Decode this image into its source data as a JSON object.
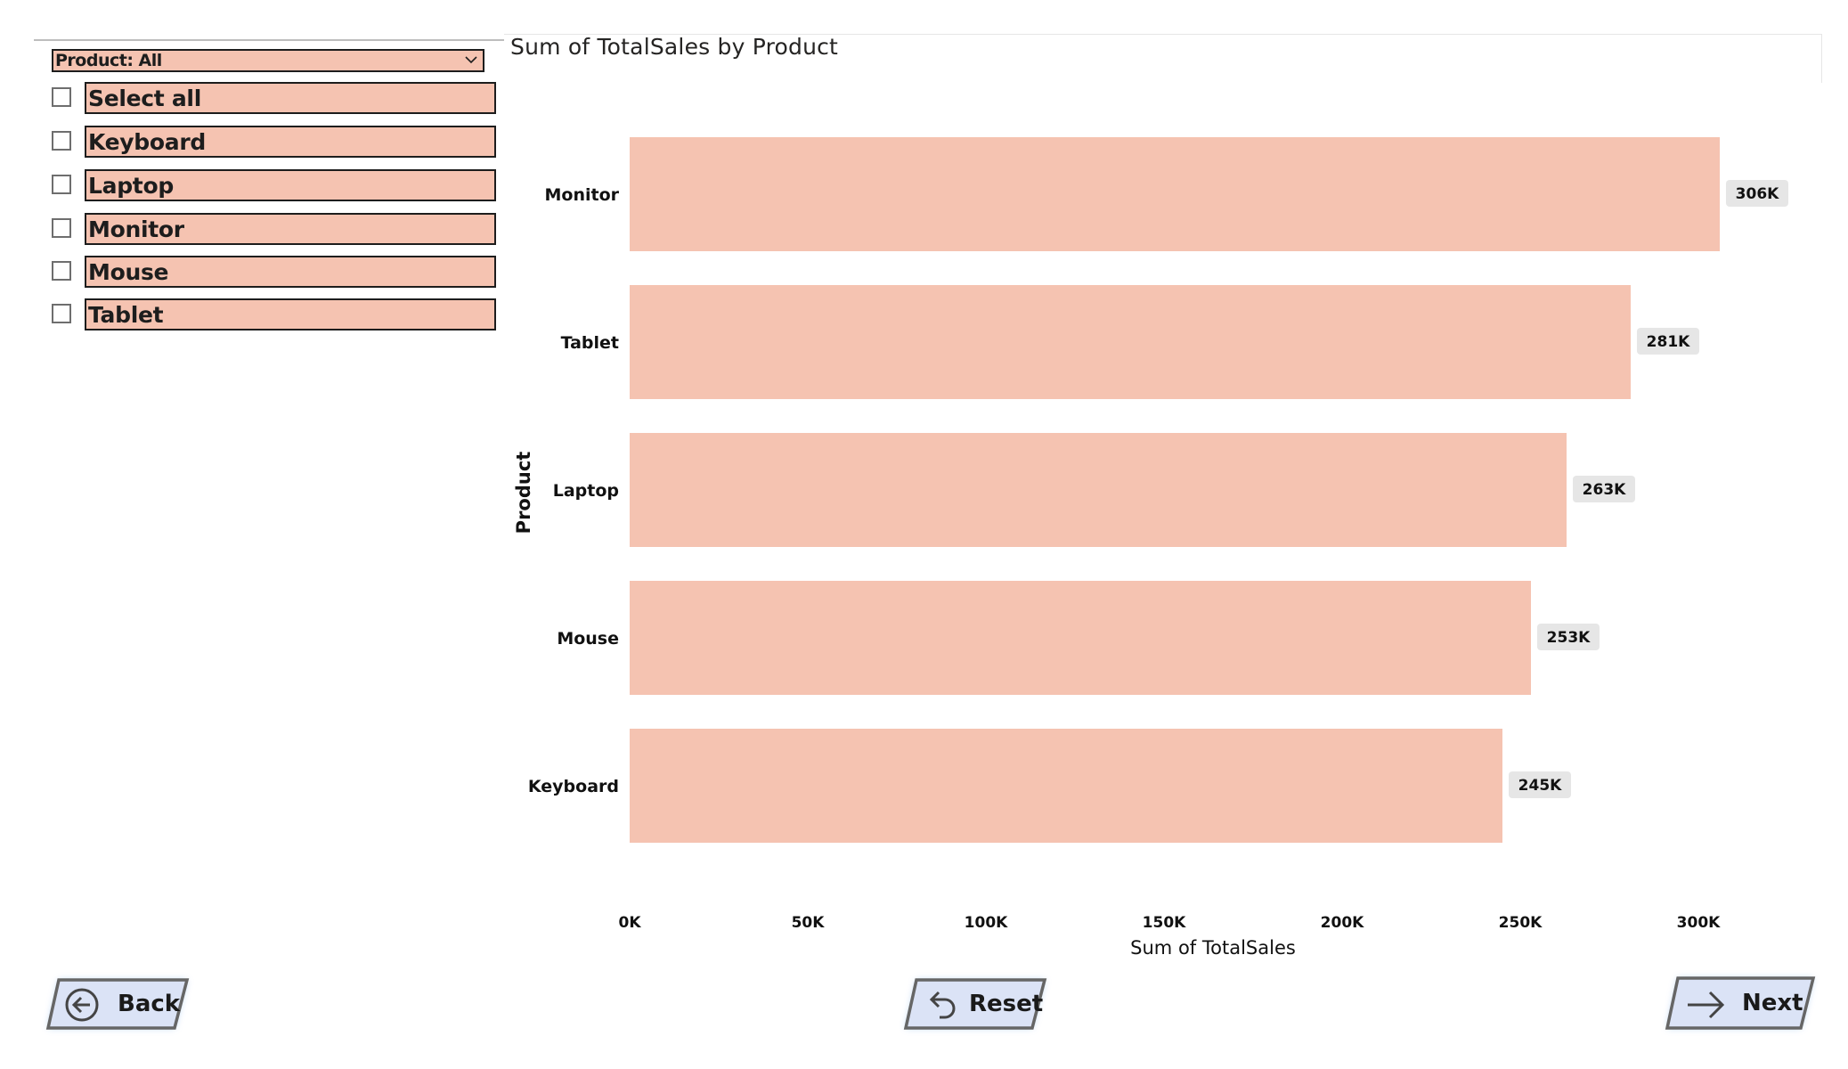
{
  "slicer": {
    "dropdown_label": "Product: All",
    "items": [
      {
        "label": "Select all"
      },
      {
        "label": "Keyboard"
      },
      {
        "label": "Laptop"
      },
      {
        "label": "Monitor"
      },
      {
        "label": "Mouse"
      },
      {
        "label": "Tablet"
      }
    ]
  },
  "chart_data": {
    "type": "bar",
    "orientation": "horizontal",
    "title": "Sum of TotalSales by Product",
    "xlabel": "Sum of TotalSales",
    "ylabel": "Product",
    "categories": [
      "Monitor",
      "Tablet",
      "Laptop",
      "Mouse",
      "Keyboard"
    ],
    "values": [
      306000,
      281000,
      263000,
      253000,
      245000
    ],
    "data_labels": [
      "306K",
      "281K",
      "263K",
      "253K",
      "245K"
    ],
    "xticks": [
      "0K",
      "50K",
      "100K",
      "150K",
      "200K",
      "250K",
      "300K"
    ],
    "xlim": [
      0,
      300000
    ],
    "grid": false,
    "bar_color": "#f5c3b1"
  },
  "nav": {
    "back_label": "Back",
    "reset_label": "Reset",
    "next_label": "Next"
  },
  "colors": {
    "accent": "#f5c3b1",
    "button_fill": "#dbe3f6",
    "button_glow": "#9cc2f0"
  }
}
